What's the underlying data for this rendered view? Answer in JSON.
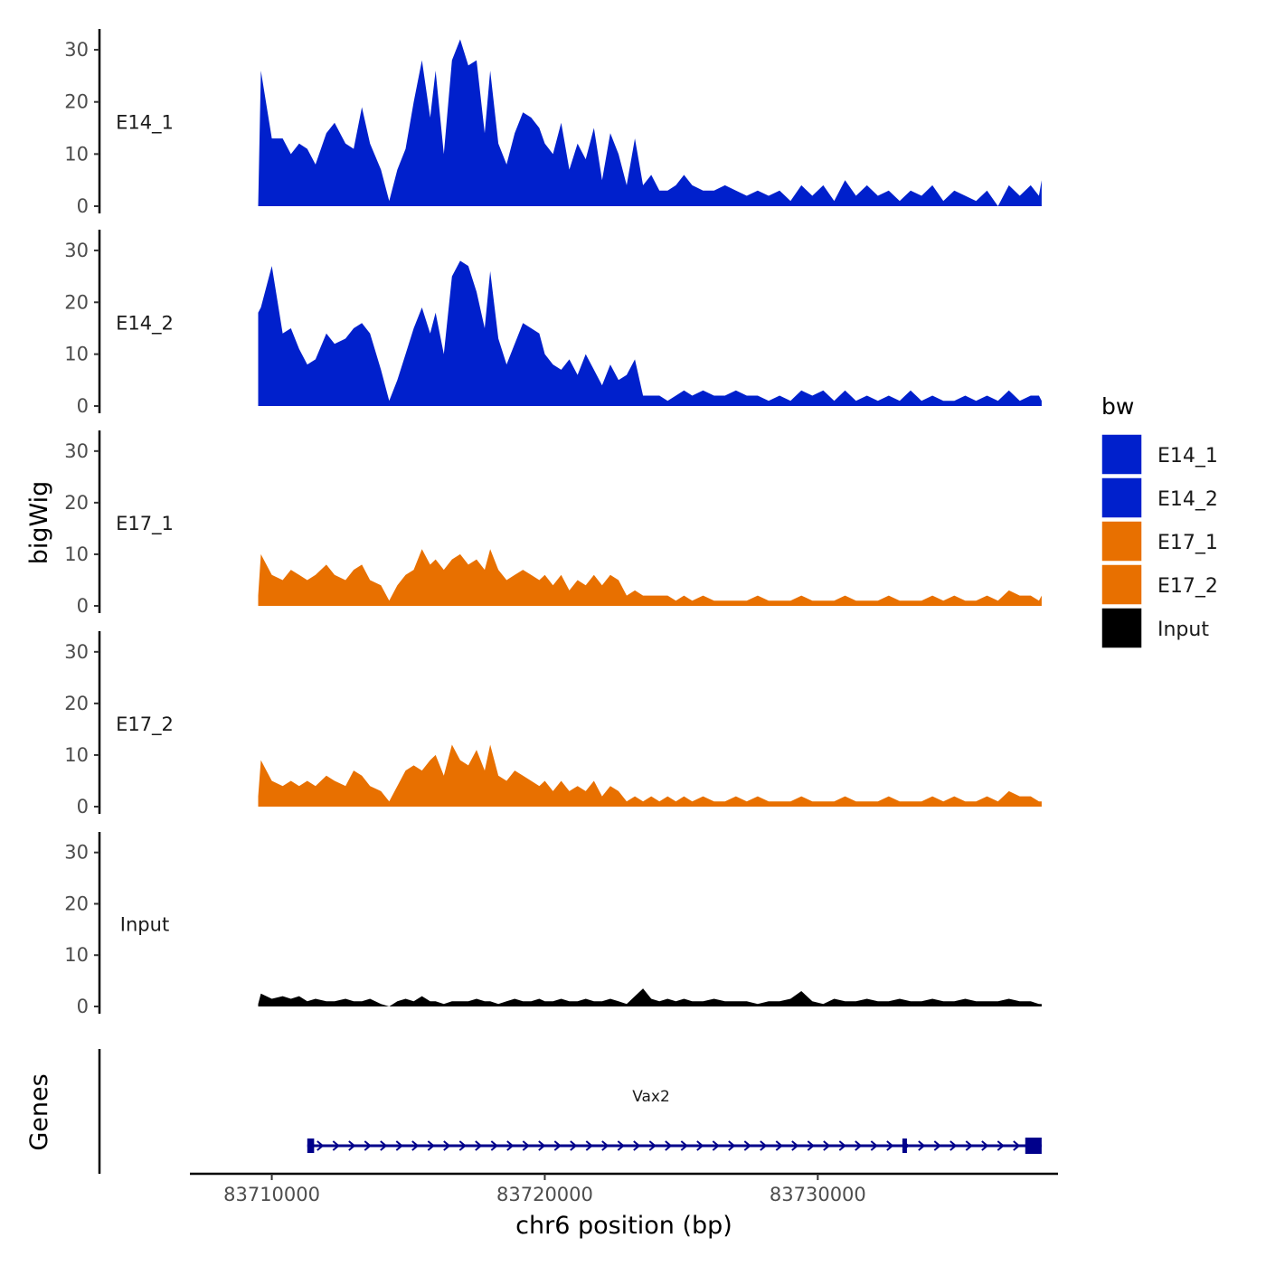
{
  "chart_data": {
    "type": "area",
    "chromosome": "chr6",
    "xlabel": "chr6 position (bp)",
    "ylabel_tracks": "bigWig",
    "ylabel_genes": "Genes",
    "xlim": [
      83707000,
      83738800
    ],
    "x_ticks": [
      83710000,
      83720000,
      83730000
    ],
    "x_tick_labels": [
      "83710000",
      "83720000",
      "83730000"
    ],
    "ylim": [
      0,
      34
    ],
    "y_ticks": [
      0,
      10,
      20,
      30
    ],
    "y_tick_labels": [
      "0",
      "10",
      "20",
      "30"
    ],
    "legend": {
      "title": "bw",
      "entries": [
        {
          "name": "E14_1",
          "color": "#0020CC"
        },
        {
          "name": "E14_2",
          "color": "#0020CC"
        },
        {
          "name": "E17_1",
          "color": "#E87000"
        },
        {
          "name": "E17_2",
          "color": "#E87000"
        },
        {
          "name": "Input",
          "color": "#000000"
        }
      ]
    },
    "tracks": [
      {
        "name": "E14_1",
        "color": "#0020CC",
        "x": [
          83709500,
          83709600,
          83710000,
          83710400,
          83710700,
          83711000,
          83711300,
          83711600,
          83712000,
          83712300,
          83712700,
          83713000,
          83713300,
          83713600,
          83714000,
          83714300,
          83714600,
          83714900,
          83715200,
          83715500,
          83715800,
          83716000,
          83716300,
          83716600,
          83716900,
          83717200,
          83717500,
          83717800,
          83718000,
          83718300,
          83718600,
          83718900,
          83719200,
          83719500,
          83719800,
          83720000,
          83720300,
          83720600,
          83720900,
          83721200,
          83721500,
          83721800,
          83722100,
          83722400,
          83722700,
          83723000,
          83723300,
          83723600,
          83723900,
          83724200,
          83724500,
          83724800,
          83725100,
          83725400,
          83725800,
          83726200,
          83726600,
          83727000,
          83727400,
          83727800,
          83728200,
          83728600,
          83729000,
          83729400,
          83729800,
          83730200,
          83730600,
          83731000,
          83731400,
          83731800,
          83732200,
          83732600,
          83733000,
          83733400,
          83733800,
          83734200,
          83734600,
          83735000,
          83735400,
          83735800,
          83736200,
          83736600,
          83737000,
          83737400,
          83737800,
          83738100,
          83738200
        ],
        "y": [
          0,
          26,
          13,
          13,
          10,
          12,
          11,
          8,
          14,
          16,
          12,
          11,
          19,
          12,
          7,
          1,
          7,
          11,
          20,
          28,
          17,
          26,
          10,
          28,
          32,
          27,
          28,
          14,
          26,
          12,
          8,
          14,
          18,
          17,
          15,
          12,
          10,
          16,
          7,
          12,
          9,
          15,
          5,
          14,
          10,
          4,
          13,
          4,
          6,
          3,
          3,
          4,
          6,
          4,
          3,
          3,
          4,
          3,
          2,
          3,
          2,
          3,
          1,
          4,
          2,
          4,
          1,
          5,
          2,
          4,
          2,
          3,
          1,
          3,
          2,
          4,
          1,
          3,
          2,
          1,
          3,
          0,
          4,
          2,
          4,
          2,
          5
        ]
      },
      {
        "name": "E14_2",
        "color": "#0020CC",
        "x": [
          83709500,
          83709600,
          83710000,
          83710400,
          83710700,
          83711000,
          83711300,
          83711600,
          83712000,
          83712300,
          83712700,
          83713000,
          83713300,
          83713600,
          83714000,
          83714300,
          83714600,
          83714900,
          83715200,
          83715500,
          83715800,
          83716000,
          83716300,
          83716600,
          83716900,
          83717200,
          83717500,
          83717800,
          83718000,
          83718300,
          83718600,
          83718900,
          83719200,
          83719500,
          83719800,
          83720000,
          83720300,
          83720600,
          83720900,
          83721200,
          83721500,
          83721800,
          83722100,
          83722400,
          83722700,
          83723000,
          83723300,
          83723600,
          83723900,
          83724200,
          83724500,
          83724800,
          83725100,
          83725400,
          83725800,
          83726200,
          83726600,
          83727000,
          83727400,
          83727800,
          83728200,
          83728600,
          83729000,
          83729400,
          83729800,
          83730200,
          83730600,
          83731000,
          83731400,
          83731800,
          83732200,
          83732600,
          83733000,
          83733400,
          83733800,
          83734200,
          83734600,
          83735000,
          83735400,
          83735800,
          83736200,
          83736600,
          83737000,
          83737400,
          83737800,
          83738100,
          83738200
        ],
        "y": [
          18,
          19,
          27,
          14,
          15,
          11,
          8,
          9,
          14,
          12,
          13,
          15,
          16,
          14,
          7,
          1,
          5,
          10,
          15,
          19,
          14,
          18,
          10,
          25,
          28,
          27,
          22,
          15,
          26,
          13,
          8,
          12,
          16,
          15,
          14,
          10,
          8,
          7,
          9,
          6,
          10,
          7,
          4,
          8,
          5,
          6,
          9,
          2,
          2,
          2,
          1,
          2,
          3,
          2,
          3,
          2,
          2,
          3,
          2,
          2,
          1,
          2,
          1,
          3,
          2,
          3,
          1,
          3,
          1,
          2,
          1,
          2,
          1,
          3,
          1,
          2,
          1,
          1,
          2,
          1,
          2,
          1,
          3,
          1,
          2,
          2,
          1
        ]
      },
      {
        "name": "E17_1",
        "color": "#E87000",
        "x": [
          83709500,
          83709600,
          83710000,
          83710400,
          83710700,
          83711000,
          83711300,
          83711600,
          83712000,
          83712300,
          83712700,
          83713000,
          83713300,
          83713600,
          83714000,
          83714300,
          83714600,
          83714900,
          83715200,
          83715500,
          83715800,
          83716000,
          83716300,
          83716600,
          83716900,
          83717200,
          83717500,
          83717800,
          83718000,
          83718300,
          83718600,
          83718900,
          83719200,
          83719500,
          83719800,
          83720000,
          83720300,
          83720600,
          83720900,
          83721200,
          83721500,
          83721800,
          83722100,
          83722400,
          83722700,
          83723000,
          83723300,
          83723600,
          83723900,
          83724200,
          83724500,
          83724800,
          83725100,
          83725400,
          83725800,
          83726200,
          83726600,
          83727000,
          83727400,
          83727800,
          83728200,
          83728600,
          83729000,
          83729400,
          83729800,
          83730200,
          83730600,
          83731000,
          83731400,
          83731800,
          83732200,
          83732600,
          83733000,
          83733400,
          83733800,
          83734200,
          83734600,
          83735000,
          83735400,
          83735800,
          83736200,
          83736600,
          83737000,
          83737400,
          83737800,
          83738100,
          83738200
        ],
        "y": [
          2,
          10,
          6,
          5,
          7,
          6,
          5,
          6,
          8,
          6,
          5,
          7,
          8,
          5,
          4,
          1,
          4,
          6,
          7,
          11,
          8,
          9,
          7,
          9,
          10,
          8,
          9,
          7,
          11,
          7,
          5,
          6,
          7,
          6,
          5,
          6,
          4,
          6,
          3,
          5,
          4,
          6,
          4,
          6,
          5,
          2,
          3,
          2,
          2,
          2,
          2,
          1,
          2,
          1,
          2,
          1,
          1,
          1,
          1,
          2,
          1,
          1,
          1,
          2,
          1,
          1,
          1,
          2,
          1,
          1,
          1,
          2,
          1,
          1,
          1,
          2,
          1,
          2,
          1,
          1,
          2,
          1,
          3,
          2,
          2,
          1,
          2
        ]
      },
      {
        "name": "E17_2",
        "color": "#E87000",
        "x": [
          83709500,
          83709600,
          83710000,
          83710400,
          83710700,
          83711000,
          83711300,
          83711600,
          83712000,
          83712300,
          83712700,
          83713000,
          83713300,
          83713600,
          83714000,
          83714300,
          83714600,
          83714900,
          83715200,
          83715500,
          83715800,
          83716000,
          83716300,
          83716600,
          83716900,
          83717200,
          83717500,
          83717800,
          83718000,
          83718300,
          83718600,
          83718900,
          83719200,
          83719500,
          83719800,
          83720000,
          83720300,
          83720600,
          83720900,
          83721200,
          83721500,
          83721800,
          83722100,
          83722400,
          83722700,
          83723000,
          83723300,
          83723600,
          83723900,
          83724200,
          83724500,
          83724800,
          83725100,
          83725400,
          83725800,
          83726200,
          83726600,
          83727000,
          83727400,
          83727800,
          83728200,
          83728600,
          83729000,
          83729400,
          83729800,
          83730200,
          83730600,
          83731000,
          83731400,
          83731800,
          83732200,
          83732600,
          83733000,
          83733400,
          83733800,
          83734200,
          83734600,
          83735000,
          83735400,
          83735800,
          83736200,
          83736600,
          83737000,
          83737400,
          83737800,
          83738100,
          83738200
        ],
        "y": [
          2,
          9,
          5,
          4,
          5,
          4,
          5,
          4,
          6,
          5,
          4,
          7,
          6,
          4,
          3,
          1,
          4,
          7,
          8,
          7,
          9,
          10,
          6,
          12,
          9,
          8,
          11,
          7,
          12,
          6,
          5,
          7,
          6,
          5,
          4,
          5,
          3,
          5,
          3,
          4,
          3,
          5,
          2,
          4,
          3,
          1,
          2,
          1,
          2,
          1,
          2,
          1,
          2,
          1,
          2,
          1,
          1,
          2,
          1,
          2,
          1,
          1,
          1,
          2,
          1,
          1,
          1,
          2,
          1,
          1,
          1,
          2,
          1,
          1,
          1,
          2,
          1,
          2,
          1,
          1,
          2,
          1,
          3,
          2,
          2,
          1,
          1
        ]
      },
      {
        "name": "Input",
        "color": "#000000",
        "x": [
          83709500,
          83709600,
          83710000,
          83710400,
          83710700,
          83711000,
          83711300,
          83711600,
          83712000,
          83712300,
          83712700,
          83713000,
          83713300,
          83713600,
          83714000,
          83714300,
          83714600,
          83714900,
          83715200,
          83715500,
          83715800,
          83716000,
          83716300,
          83716600,
          83716900,
          83717200,
          83717500,
          83717800,
          83718000,
          83718300,
          83718600,
          83718900,
          83719200,
          83719500,
          83719800,
          83720000,
          83720300,
          83720600,
          83720900,
          83721200,
          83721500,
          83721800,
          83722100,
          83722400,
          83722700,
          83723000,
          83723300,
          83723600,
          83723900,
          83724200,
          83724500,
          83724800,
          83725100,
          83725400,
          83725800,
          83726200,
          83726600,
          83727000,
          83727400,
          83727800,
          83728200,
          83728600,
          83729000,
          83729400,
          83729800,
          83730200,
          83730600,
          83731000,
          83731400,
          83731800,
          83732200,
          83732600,
          83733000,
          83733400,
          83733800,
          83734200,
          83734600,
          83735000,
          83735400,
          83735800,
          83736200,
          83736600,
          83737000,
          83737400,
          83737800,
          83738100,
          83738200
        ],
        "y": [
          0.5,
          2.5,
          1.5,
          2,
          1.5,
          2,
          1,
          1.5,
          1,
          1,
          1.5,
          1,
          1,
          1.5,
          0.5,
          0,
          1,
          1.5,
          1,
          2,
          1,
          1,
          0.5,
          1,
          1,
          1,
          1.5,
          1,
          1,
          0.5,
          1,
          1.5,
          1,
          1,
          1.5,
          1,
          1,
          1.5,
          1,
          1,
          1.5,
          1,
          1,
          1.5,
          1,
          0.5,
          2,
          3.5,
          1.5,
          1,
          1.5,
          1,
          1.5,
          1,
          1,
          1.5,
          1,
          1,
          1,
          0.5,
          1,
          1,
          1.5,
          3,
          1,
          0.5,
          1.5,
          1,
          1,
          1.5,
          1,
          1,
          1.5,
          1,
          1,
          1.5,
          1,
          1,
          1.5,
          1,
          1,
          1,
          1.5,
          1,
          1,
          0.5,
          0.5
        ]
      }
    ],
    "gene": {
      "name": "Vax2",
      "color": "#00008B",
      "start": 83711300,
      "end": 83738200,
      "strand": "+",
      "exons": [
        [
          83711300,
          83711550
        ],
        [
          83733100,
          83733250
        ],
        [
          83737600,
          83738200
        ]
      ]
    }
  }
}
